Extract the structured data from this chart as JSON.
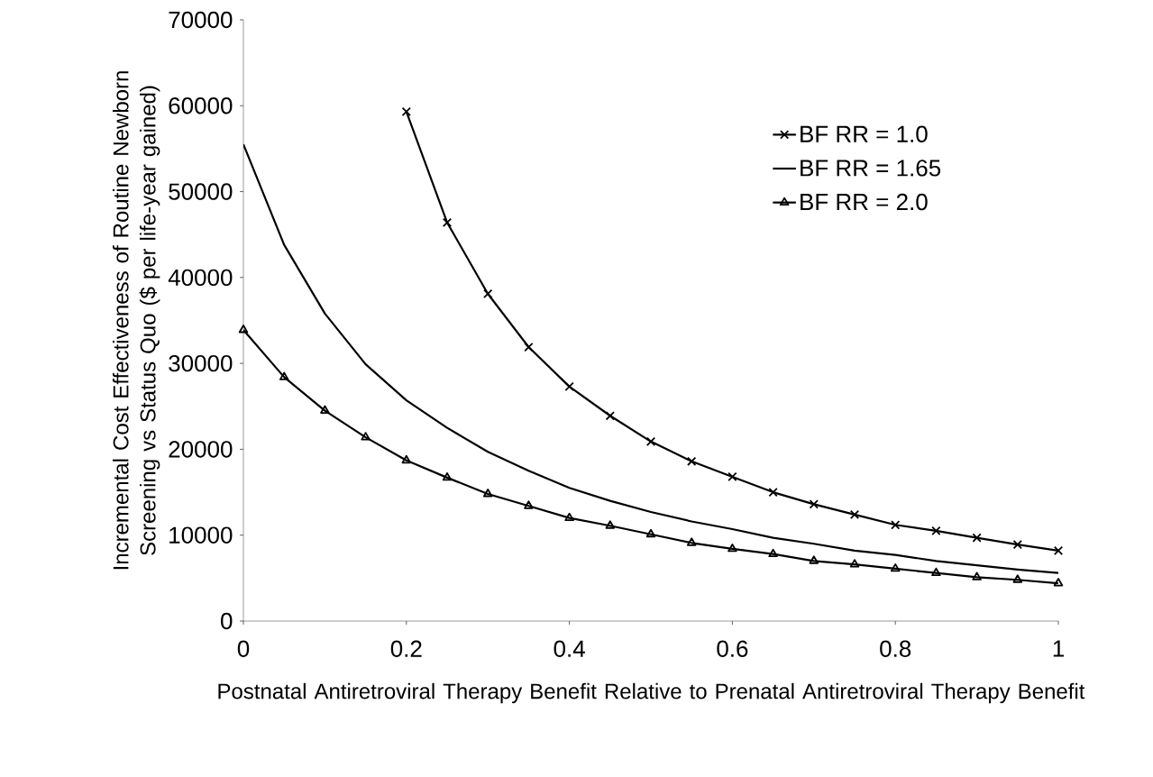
{
  "chart_data": {
    "type": "line",
    "xlabel": "Postnatal Antiretroviral Therapy Benefit Relative to Prenatal Antiretroviral Therapy Benefit",
    "ylabel": "Incremental Cost Effectiveness of Routine Newborn Screening vs Status Quo ($ per life-year gained)",
    "x": [
      0,
      0.05,
      0.1,
      0.15,
      0.2,
      0.25,
      0.3,
      0.35,
      0.4,
      0.45,
      0.5,
      0.55,
      0.6,
      0.65,
      0.7,
      0.75,
      0.8,
      0.85,
      0.9,
      0.95,
      1
    ],
    "series": [
      {
        "name": "BF RR = 1.0",
        "color": "#000000",
        "marker": "cross",
        "x": [
          0.2,
          0.25,
          0.3,
          0.35,
          0.4,
          0.45,
          0.5,
          0.55,
          0.6,
          0.65,
          0.7,
          0.75,
          0.8,
          0.85,
          0.9,
          0.95,
          1
        ],
        "values": [
          59300,
          46400,
          38100,
          31900,
          27300,
          23900,
          20900,
          18600,
          16800,
          15000,
          13600,
          12400,
          11200,
          10500,
          9700,
          8900,
          8200
        ]
      },
      {
        "name": "BF RR = 1.65",
        "color": "#000000",
        "marker": "none",
        "values": [
          55500,
          43800,
          35800,
          29900,
          25700,
          22500,
          19700,
          17500,
          15500,
          14000,
          12700,
          11600,
          10700,
          9700,
          9000,
          8200,
          7700,
          7000,
          6500,
          6000,
          5600
        ]
      },
      {
        "name": "BF RR = 2.0",
        "color": "#000000",
        "marker": "triangle",
        "values": [
          33900,
          28400,
          24500,
          21400,
          18700,
          16700,
          14800,
          13400,
          12000,
          11100,
          10100,
          9100,
          8400,
          7800,
          7000,
          6600,
          6100,
          5600,
          5100,
          4800,
          4400
        ]
      }
    ],
    "xlim": [
      0,
      1
    ],
    "ylim": [
      0,
      70000
    ],
    "xticks": [
      0,
      0.2,
      0.4,
      0.6,
      0.8,
      1
    ],
    "yticks": [
      0,
      10000,
      20000,
      30000,
      40000,
      50000,
      60000,
      70000
    ],
    "legend": "top right",
    "grid": false
  }
}
